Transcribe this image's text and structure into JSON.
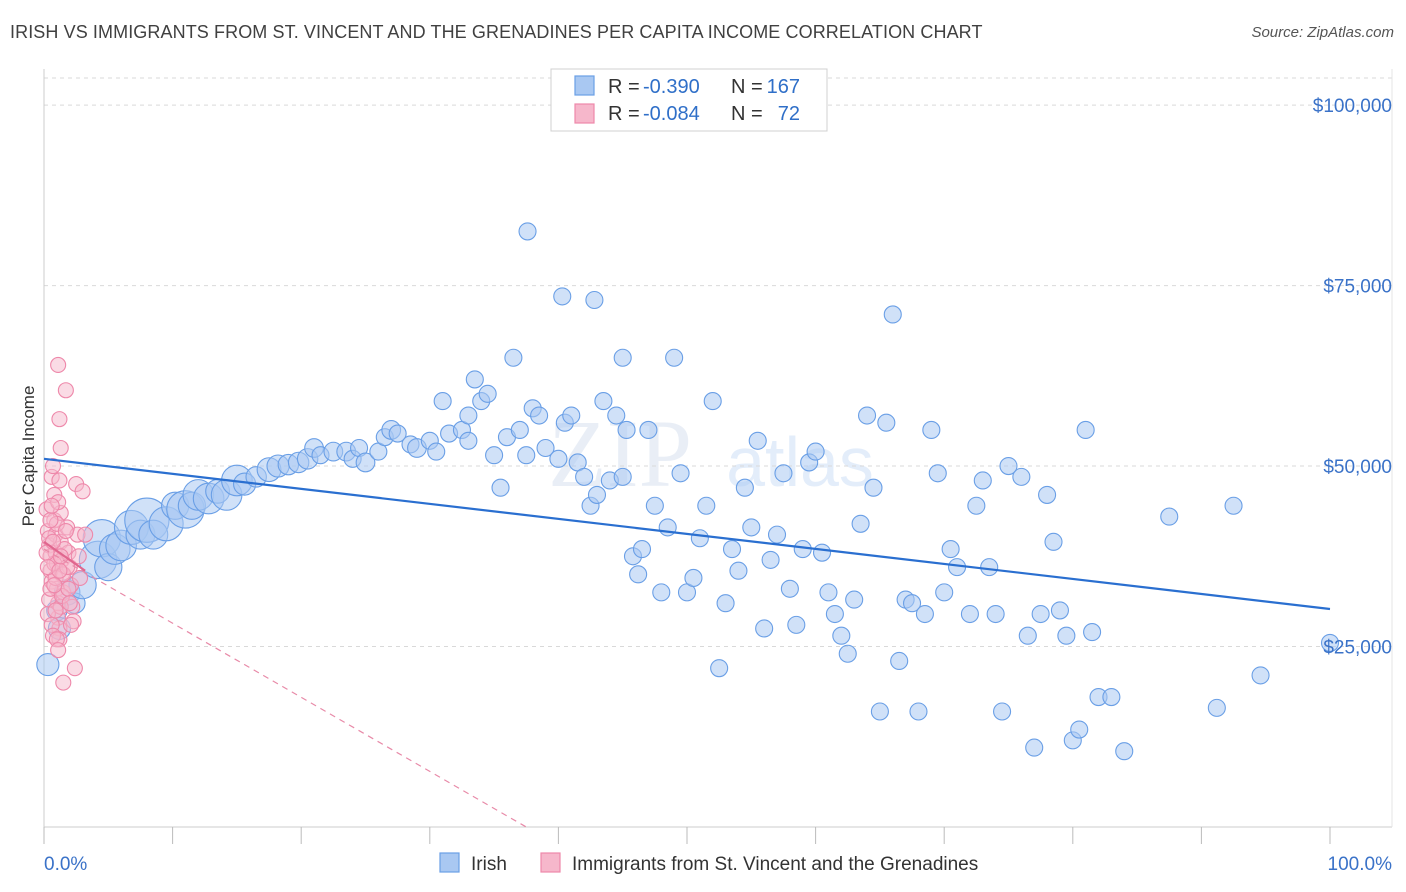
{
  "header": {
    "title": "IRISH VS IMMIGRANTS FROM ST. VINCENT AND THE GRENADINES PER CAPITA INCOME CORRELATION CHART",
    "source": "Source: ZipAtlas.com"
  },
  "watermark": {
    "zip": "ZIP",
    "atlas": "atlas"
  },
  "colors": {
    "blue": "#6a9fe6",
    "blue_fill": "#a9c8f2",
    "blue_line": "#2a6fd0",
    "pink": "#ee88aa",
    "pink_fill": "#f6b7cb",
    "pink_line": "#e88aa8",
    "grid": "#d9d9d9",
    "tick_label": "#3a72c8"
  },
  "legend": {
    "rows": [
      {
        "r_label": "R =",
        "r_value": "-0.390",
        "n_label": "N =",
        "n_value": "167",
        "series": "Irish"
      },
      {
        "r_label": "R =",
        "r_value": "-0.084",
        "n_label": "N =",
        "n_value": "72",
        "series": "Immigrants from St. Vincent and the Grenadines"
      }
    ]
  },
  "chart_data": {
    "type": "scatter",
    "title": "IRISH VS IMMIGRANTS FROM ST. VINCENT AND THE GRENADINES PER CAPITA INCOME CORRELATION CHART",
    "xlabel": "",
    "ylabel": "Per Capita Income",
    "xlim": [
      0,
      100
    ],
    "ylim": [
      0,
      105000
    ],
    "x_tick_labels": {
      "left": "0.0%",
      "right": "100.0%"
    },
    "y_ticks": [
      {
        "value": 25000,
        "label": "$25,000"
      },
      {
        "value": 50000,
        "label": "$50,000"
      },
      {
        "value": 75000,
        "label": "$75,000"
      },
      {
        "value": 100000,
        "label": "$100,000"
      }
    ],
    "series": [
      {
        "name": "Irish",
        "r": -0.39,
        "n": 167,
        "trend": {
          "x": [
            0,
            100
          ],
          "y": [
            51000,
            30200
          ]
        },
        "points": [
          [
            0.3,
            22500,
            1.3
          ],
          [
            1.0,
            30000,
            1.2
          ],
          [
            1.2,
            27500,
            1.3
          ],
          [
            1.8,
            32500,
            1.5
          ],
          [
            2.4,
            31000,
            1.2
          ],
          [
            3.0,
            33500,
            1.6
          ],
          [
            4.2,
            37000,
            2.2
          ],
          [
            4.5,
            40000,
            2.2
          ],
          [
            5.0,
            36000,
            1.6
          ],
          [
            5.5,
            38500,
            1.8
          ],
          [
            6.0,
            39000,
            1.8
          ],
          [
            6.8,
            41500,
            2.0
          ],
          [
            7.5,
            40500,
            1.7
          ],
          [
            8.0,
            42500,
            2.6
          ],
          [
            8.5,
            40500,
            1.7
          ],
          [
            9.5,
            42000,
            2.0
          ],
          [
            10.2,
            44500,
            1.6
          ],
          [
            11.0,
            44000,
            2.2
          ],
          [
            11.5,
            44500,
            1.6
          ],
          [
            12.0,
            46000,
            1.8
          ],
          [
            12.8,
            45500,
            1.8
          ],
          [
            13.5,
            46500,
            1.4
          ],
          [
            14.2,
            46000,
            1.8
          ],
          [
            15.0,
            48000,
            1.8
          ],
          [
            15.6,
            47500,
            1.3
          ],
          [
            16.5,
            48500,
            1.2
          ],
          [
            17.5,
            49500,
            1.4
          ],
          [
            18.2,
            50000,
            1.3
          ],
          [
            19.0,
            50200,
            1.2
          ],
          [
            19.8,
            50500,
            1.2
          ],
          [
            20.5,
            51000,
            1.2
          ],
          [
            21.0,
            52500,
            1.1
          ],
          [
            21.5,
            51500,
            1.0
          ],
          [
            22.5,
            52000,
            1.1
          ],
          [
            23.5,
            52000,
            1.1
          ],
          [
            24.0,
            51000,
            1.0
          ],
          [
            24.5,
            52500,
            1.0
          ],
          [
            25.0,
            50500,
            1.1
          ],
          [
            26.0,
            52000,
            1.0
          ],
          [
            26.5,
            54000,
            1.0
          ],
          [
            27.0,
            55000,
            1.1
          ],
          [
            27.5,
            54500,
            1.0
          ],
          [
            28.5,
            53000,
            1.0
          ],
          [
            29.0,
            52500,
            1.1
          ],
          [
            30.0,
            53500,
            1.0
          ],
          [
            30.5,
            52000,
            1.0
          ],
          [
            31.0,
            59000,
            1.0
          ],
          [
            31.5,
            54500,
            1.0
          ],
          [
            32.5,
            55000,
            1.0
          ],
          [
            33.0,
            53500,
            1.0
          ],
          [
            33.5,
            62000,
            1.0
          ],
          [
            34.0,
            59000,
            1.0
          ],
          [
            34.5,
            60000,
            1.0
          ],
          [
            35.0,
            51500,
            1.0
          ],
          [
            36.0,
            54000,
            1.0
          ],
          [
            36.5,
            65000,
            1.0
          ],
          [
            37.0,
            55000,
            1.0
          ],
          [
            37.5,
            51500,
            1.0
          ],
          [
            38.0,
            58000,
            1.0
          ],
          [
            38.5,
            57000,
            1.0
          ],
          [
            39.0,
            52500,
            1.0
          ],
          [
            40.0,
            51000,
            1.0
          ],
          [
            40.5,
            56000,
            1.0
          ],
          [
            41.0,
            57000,
            1.0
          ],
          [
            37.6,
            82500,
            1.0
          ],
          [
            40.3,
            73500,
            1.0
          ],
          [
            41.5,
            50500,
            1.0
          ],
          [
            42.0,
            48500,
            1.0
          ],
          [
            42.5,
            44500,
            1.0
          ],
          [
            42.8,
            73000,
            1.0
          ],
          [
            43.5,
            59000,
            1.0
          ],
          [
            44.0,
            48000,
            1.0
          ],
          [
            44.5,
            57000,
            1.0
          ],
          [
            45.0,
            65000,
            1.0
          ],
          [
            45.3,
            55000,
            1.0
          ],
          [
            45.8,
            37500,
            1.0
          ],
          [
            46.2,
            35000,
            1.0
          ],
          [
            46.5,
            38500,
            1.0
          ],
          [
            47.0,
            55000,
            1.0
          ],
          [
            47.5,
            44500,
            1.0
          ],
          [
            48.0,
            32500,
            1.0
          ],
          [
            48.5,
            41500,
            1.0
          ],
          [
            49.0,
            65000,
            1.0
          ],
          [
            49.5,
            49000,
            1.0
          ],
          [
            50.0,
            32500,
            1.0
          ],
          [
            50.5,
            34500,
            1.0
          ],
          [
            51.0,
            40000,
            1.0
          ],
          [
            51.5,
            44500,
            1.0
          ],
          [
            52.0,
            59000,
            1.0
          ],
          [
            52.5,
            22000,
            1.0
          ],
          [
            53.0,
            31000,
            1.0
          ],
          [
            53.5,
            38500,
            1.0
          ],
          [
            54.0,
            35500,
            1.0
          ],
          [
            54.5,
            47000,
            1.0
          ],
          [
            55.0,
            41500,
            1.0
          ],
          [
            55.5,
            53500,
            1.0
          ],
          [
            56.0,
            27500,
            1.0
          ],
          [
            56.5,
            37000,
            1.0
          ],
          [
            57.0,
            40500,
            1.0
          ],
          [
            57.5,
            49000,
            1.0
          ],
          [
            58.0,
            33000,
            1.0
          ],
          [
            58.5,
            28000,
            1.0
          ],
          [
            59.0,
            38500,
            1.0
          ],
          [
            59.5,
            50500,
            1.0
          ],
          [
            60.0,
            52000,
            1.0
          ],
          [
            60.5,
            38000,
            1.0
          ],
          [
            61.0,
            32500,
            1.0
          ],
          [
            61.5,
            29500,
            1.0
          ],
          [
            62.0,
            26500,
            1.0
          ],
          [
            62.5,
            24000,
            1.0
          ],
          [
            63.0,
            31500,
            1.0
          ],
          [
            63.5,
            42000,
            1.0
          ],
          [
            64.0,
            57000,
            1.0
          ],
          [
            64.5,
            47000,
            1.0
          ],
          [
            65.0,
            16000,
            1.0
          ],
          [
            65.5,
            56000,
            1.0
          ],
          [
            66.0,
            71000,
            1.0
          ],
          [
            66.5,
            23000,
            1.0
          ],
          [
            67.0,
            31500,
            1.0
          ],
          [
            67.5,
            31000,
            1.0
          ],
          [
            68.0,
            16000,
            1.0
          ],
          [
            68.5,
            29500,
            1.0
          ],
          [
            69.0,
            55000,
            1.0
          ],
          [
            69.5,
            49000,
            1.0
          ],
          [
            70.0,
            32500,
            1.0
          ],
          [
            70.5,
            38500,
            1.0
          ],
          [
            71.0,
            36000,
            1.0
          ],
          [
            72.0,
            29500,
            1.0
          ],
          [
            72.5,
            44500,
            1.0
          ],
          [
            73.0,
            48000,
            1.0
          ],
          [
            73.5,
            36000,
            1.0
          ],
          [
            74.0,
            29500,
            1.0
          ],
          [
            74.5,
            16000,
            1.0
          ],
          [
            75.0,
            50000,
            1.0
          ],
          [
            76.0,
            48500,
            1.0
          ],
          [
            76.5,
            26500,
            1.0
          ],
          [
            77.0,
            11000,
            1.0
          ],
          [
            77.5,
            29500,
            1.0
          ],
          [
            78.0,
            46000,
            1.0
          ],
          [
            78.5,
            39500,
            1.0
          ],
          [
            79.0,
            30000,
            1.0
          ],
          [
            79.5,
            26500,
            1.0
          ],
          [
            80.0,
            12000,
            1.0
          ],
          [
            80.5,
            13500,
            1.0
          ],
          [
            81.0,
            55000,
            1.0
          ],
          [
            81.5,
            27000,
            1.0
          ],
          [
            82.0,
            18000,
            1.0
          ],
          [
            83.0,
            18000,
            1.0
          ],
          [
            84.0,
            10500,
            1.0
          ],
          [
            87.5,
            43000,
            1.0
          ],
          [
            91.2,
            16500,
            1.0
          ],
          [
            92.5,
            44500,
            1.0
          ],
          [
            94.6,
            21000,
            1.0
          ],
          [
            100.0,
            25500,
            1.0
          ],
          [
            45.0,
            48500,
            1.0
          ],
          [
            43.0,
            46000,
            1.0
          ],
          [
            33.0,
            57000,
            1.0
          ],
          [
            35.5,
            47000,
            1.0
          ]
        ]
      },
      {
        "name": "Immigrants from St. Vincent and the Grenadines",
        "r": -0.084,
        "n": 72,
        "trend": {
          "x": [
            0,
            37.5
          ],
          "y": [
            38500,
            0
          ]
        },
        "points": [
          [
            0.2,
            44000
          ],
          [
            0.3,
            41000
          ],
          [
            0.4,
            39000
          ],
          [
            0.5,
            37500
          ],
          [
            0.5,
            35500
          ],
          [
            0.6,
            34000
          ],
          [
            0.6,
            48500
          ],
          [
            0.7,
            50000
          ],
          [
            0.8,
            46000
          ],
          [
            0.8,
            42500
          ],
          [
            0.9,
            40500
          ],
          [
            0.9,
            38000
          ],
          [
            1.0,
            36500
          ],
          [
            1.0,
            33000
          ],
          [
            1.1,
            31000
          ],
          [
            1.1,
            29000
          ],
          [
            1.2,
            27500
          ],
          [
            1.2,
            26000
          ],
          [
            1.3,
            43500
          ],
          [
            1.3,
            39500
          ],
          [
            1.4,
            37000
          ],
          [
            1.4,
            35000
          ],
          [
            1.5,
            32500
          ],
          [
            1.5,
            20000
          ],
          [
            1.1,
            64000
          ],
          [
            1.2,
            56500
          ],
          [
            1.3,
            52500
          ],
          [
            1.7,
            60500
          ],
          [
            1.8,
            41500
          ],
          [
            1.9,
            38000
          ],
          [
            2.0,
            36000
          ],
          [
            2.1,
            33500
          ],
          [
            2.2,
            30500
          ],
          [
            2.3,
            28500
          ],
          [
            2.4,
            22000
          ],
          [
            2.5,
            47500
          ],
          [
            2.6,
            40500
          ],
          [
            2.7,
            37500
          ],
          [
            2.8,
            34500
          ],
          [
            3.0,
            46500
          ],
          [
            3.2,
            40500
          ],
          [
            0.3,
            29500
          ],
          [
            0.4,
            31500
          ],
          [
            0.5,
            33000
          ],
          [
            0.6,
            28000
          ],
          [
            0.7,
            26500
          ],
          [
            0.8,
            36500
          ],
          [
            0.9,
            34500
          ],
          [
            1.0,
            42000
          ],
          [
            1.1,
            45000
          ],
          [
            1.2,
            48000
          ],
          [
            1.3,
            30500
          ],
          [
            1.4,
            32000
          ],
          [
            1.5,
            35000
          ],
          [
            1.6,
            38500
          ],
          [
            1.7,
            41000
          ],
          [
            1.8,
            36000
          ],
          [
            1.9,
            33000
          ],
          [
            2.0,
            31000
          ],
          [
            2.1,
            28000
          ],
          [
            0.2,
            38000
          ],
          [
            0.3,
            36000
          ],
          [
            0.4,
            40000
          ],
          [
            0.5,
            42500
          ],
          [
            0.6,
            44500
          ],
          [
            0.7,
            39500
          ],
          [
            0.8,
            33500
          ],
          [
            0.9,
            30000
          ],
          [
            1.0,
            26000
          ],
          [
            1.1,
            24500
          ],
          [
            1.2,
            35500
          ],
          [
            1.3,
            37500
          ]
        ]
      }
    ]
  },
  "bottom_legend": {
    "items": [
      {
        "label": "Irish"
      },
      {
        "label": "Immigrants from St. Vincent and the Grenadines"
      }
    ]
  }
}
